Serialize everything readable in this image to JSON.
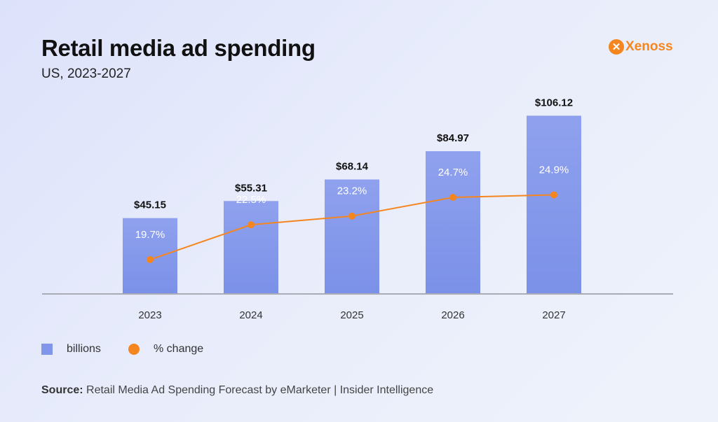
{
  "title": "Retail media ad spending",
  "subtitle": "US, 2023-2027",
  "logo": {
    "text": "Xenoss",
    "color": "#f5861f"
  },
  "legend": {
    "bars": "billions",
    "line": "% change"
  },
  "source": {
    "label": "Source:",
    "text": " Retail Media Ad Spending Forecast by eMarketer | Insider Intelligence"
  },
  "chart_data": {
    "type": "bar+line",
    "categories": [
      "2023",
      "2024",
      "2025",
      "2026",
      "2027"
    ],
    "series": [
      {
        "name": "billions",
        "type": "bar",
        "values": [
          45.15,
          55.31,
          68.14,
          84.97,
          106.12
        ],
        "labels": [
          "$45.15",
          "$55.31",
          "$68.14",
          "$84.97",
          "$106.12"
        ],
        "color": "#8196ea"
      },
      {
        "name": "% change",
        "type": "line",
        "values": [
          19.7,
          22.5,
          23.2,
          24.7,
          24.9
        ],
        "labels": [
          "19.7%",
          "22.5%",
          "23.2%",
          "24.7%",
          "24.9%"
        ],
        "color": "#f5861f"
      }
    ],
    "grid": false,
    "legend_position": "bottom-left"
  }
}
